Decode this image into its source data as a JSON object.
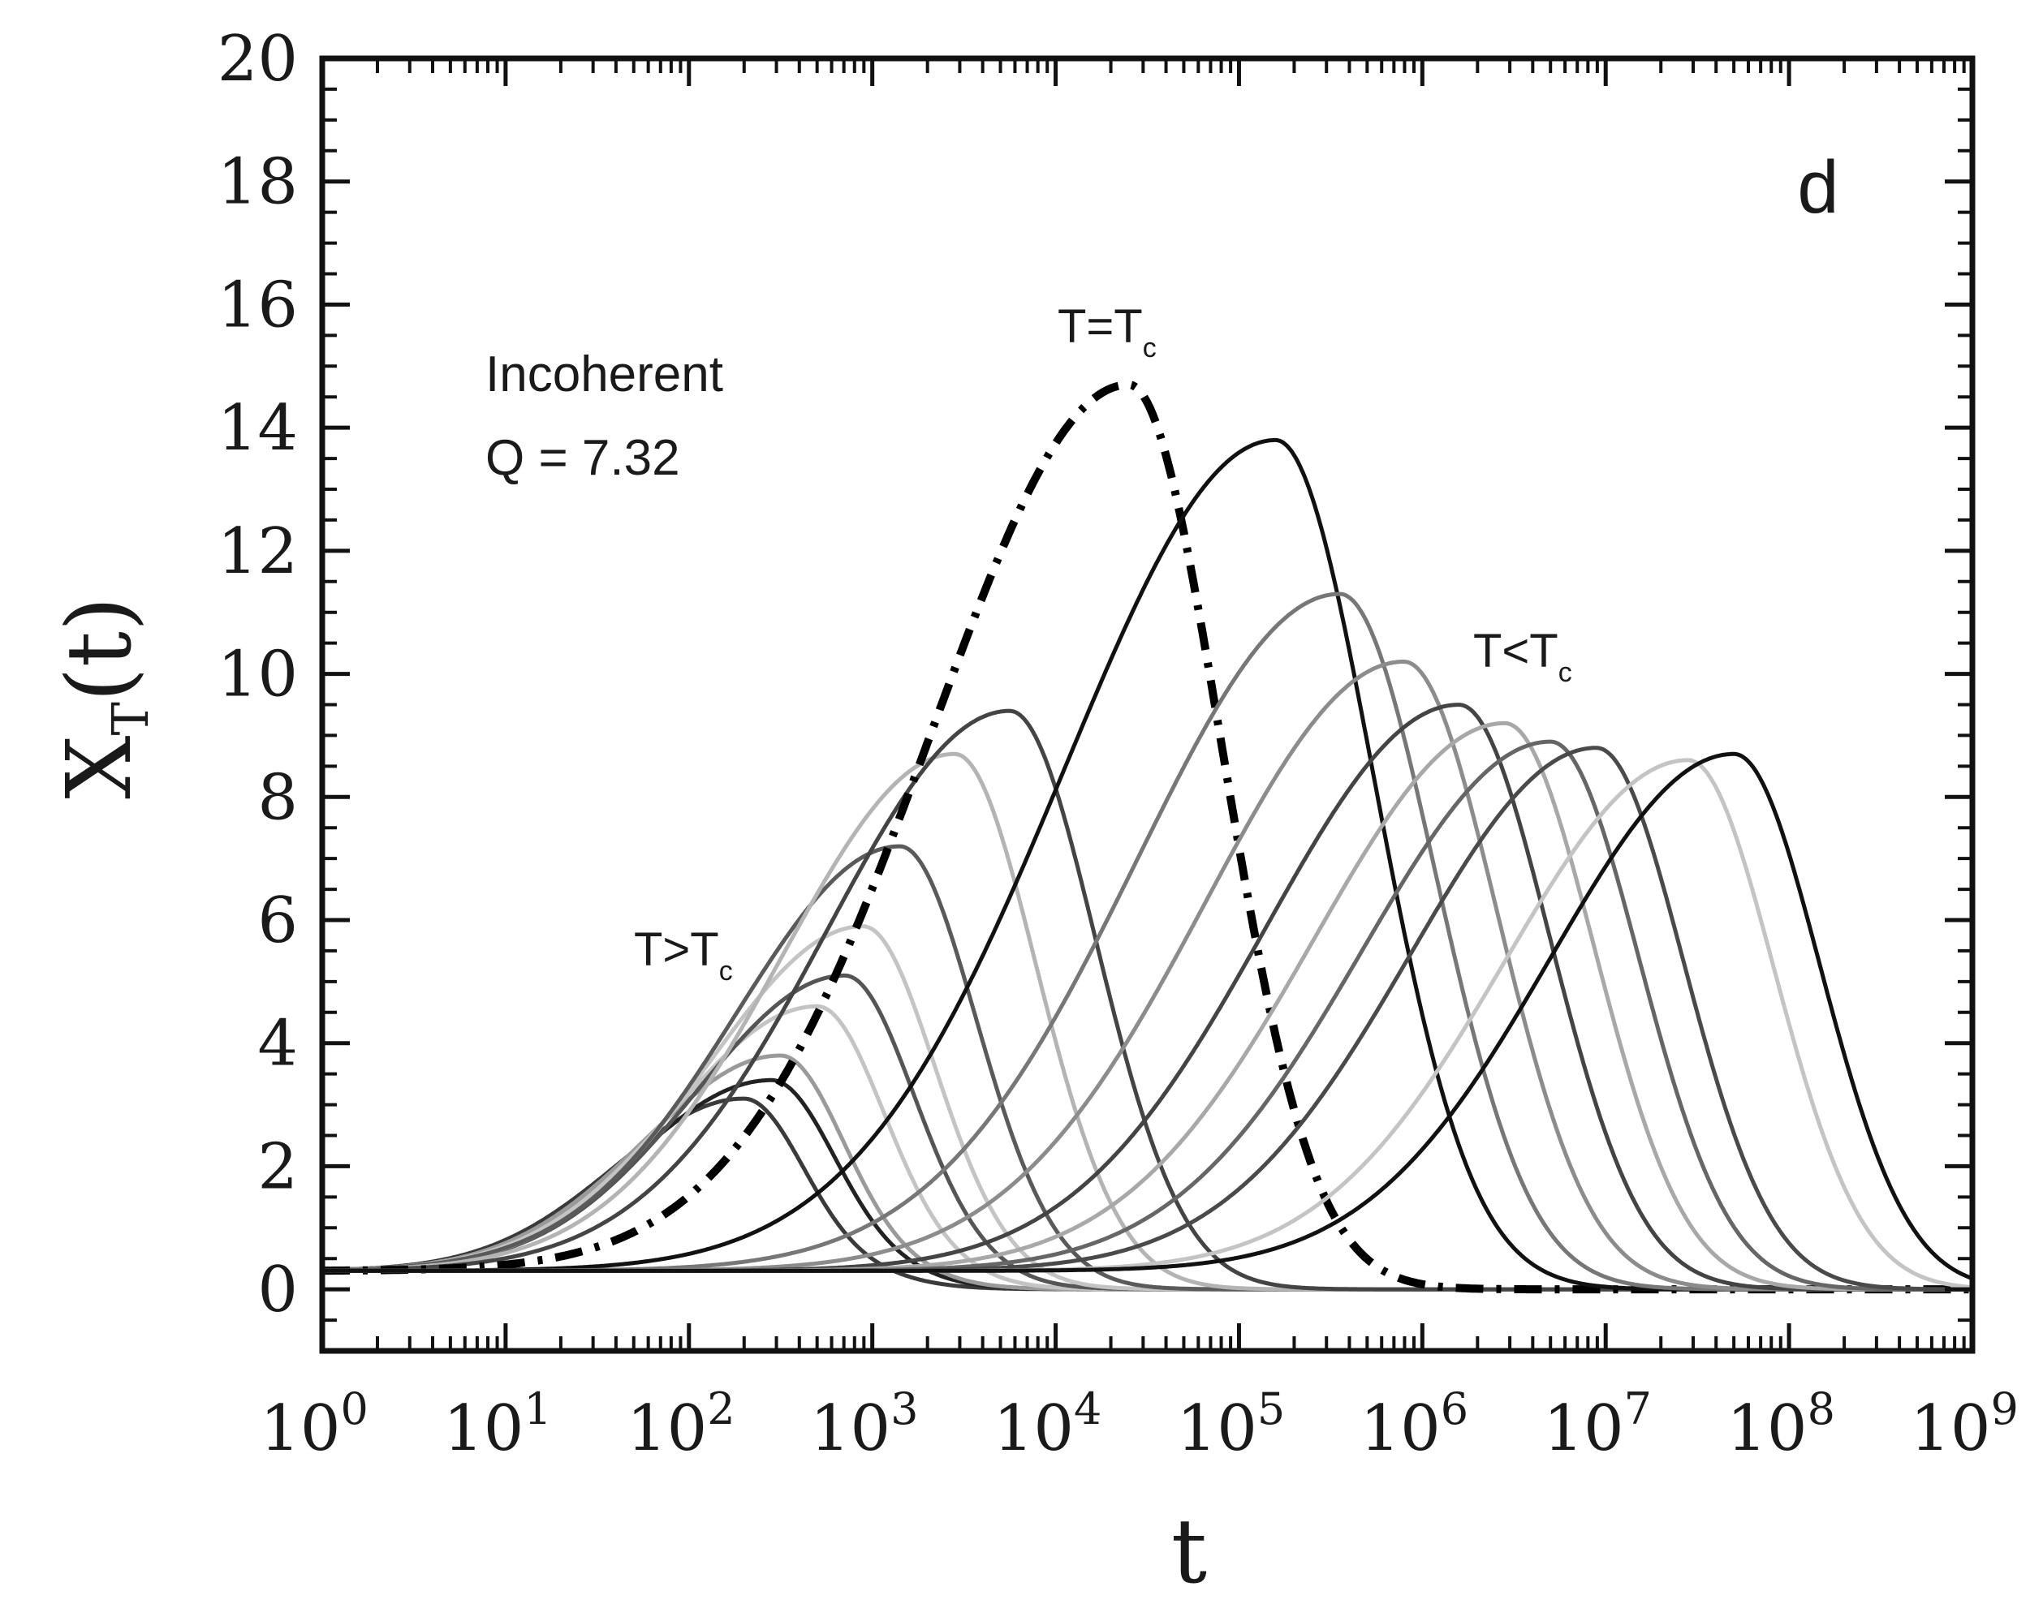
{
  "chart_data": {
    "type": "line",
    "panel_label": "d",
    "xlabel": "t",
    "ylabel": {
      "main": "X",
      "sub": "T",
      "rest": "(t)"
    },
    "x_scale": "log10",
    "xlim_exp": [
      0,
      9
    ],
    "ylim": [
      -1,
      20
    ],
    "x_ticks": [
      {
        "base": "10",
        "exp": "0"
      },
      {
        "base": "10",
        "exp": "1"
      },
      {
        "base": "10",
        "exp": "2"
      },
      {
        "base": "10",
        "exp": "3"
      },
      {
        "base": "10",
        "exp": "4"
      },
      {
        "base": "10",
        "exp": "5"
      },
      {
        "base": "10",
        "exp": "6"
      },
      {
        "base": "10",
        "exp": "7"
      },
      {
        "base": "10",
        "exp": "8"
      },
      {
        "base": "10",
        "exp": "9"
      }
    ],
    "y_ticks": [
      "0",
      "2",
      "4",
      "6",
      "8",
      "10",
      "12",
      "14",
      "16",
      "18",
      "20"
    ],
    "annotations": {
      "regime": "Incoherent",
      "q_value": "Q = 7.32",
      "t_equal": {
        "main": "T=T",
        "sub": "c"
      },
      "t_above": {
        "main": "T>T",
        "sub": "c"
      },
      "t_below": {
        "main": "T<T",
        "sub": "c"
      }
    },
    "baseline": 0.3,
    "series": [
      {
        "name": "T>Tc 1",
        "group": "T>Tc",
        "peak_log_t": 2.3,
        "peak": 3.1,
        "width": 0.52,
        "color": "#3a3a3a",
        "style": "solid"
      },
      {
        "name": "T>Tc 2",
        "group": "T>Tc",
        "peak_log_t": 2.45,
        "peak": 3.4,
        "width": 0.55,
        "color": "#222222",
        "style": "solid"
      },
      {
        "name": "T>Tc 3",
        "group": "T>Tc",
        "peak_log_t": 2.5,
        "peak": 3.8,
        "width": 0.55,
        "color": "#9a9a9a",
        "style": "solid"
      },
      {
        "name": "T>Tc 4",
        "group": "T>Tc",
        "peak_log_t": 2.7,
        "peak": 4.6,
        "width": 0.58,
        "color": "#c4c4c4",
        "style": "solid"
      },
      {
        "name": "T>Tc 5",
        "group": "T>Tc",
        "peak_log_t": 2.85,
        "peak": 5.1,
        "width": 0.6,
        "color": "#555555",
        "style": "solid"
      },
      {
        "name": "T>Tc 6",
        "group": "T>Tc",
        "peak_log_t": 2.95,
        "peak": 5.9,
        "width": 0.62,
        "color": "#c4c4c4",
        "style": "solid"
      },
      {
        "name": "T>Tc 7",
        "group": "T>Tc",
        "peak_log_t": 3.15,
        "peak": 7.2,
        "width": 0.66,
        "color": "#5a5a5a",
        "style": "solid"
      },
      {
        "name": "T>Tc 8",
        "group": "T>Tc",
        "peak_log_t": 3.45,
        "peak": 8.7,
        "width": 0.7,
        "color": "#b4b4b4",
        "style": "solid"
      },
      {
        "name": "T>Tc 9",
        "group": "T>Tc",
        "peak_log_t": 3.75,
        "peak": 9.4,
        "width": 0.74,
        "color": "#444444",
        "style": "solid"
      },
      {
        "name": "T=Tc",
        "group": "T=Tc",
        "peak_log_t": 4.4,
        "peak": 14.7,
        "width": 0.8,
        "color": "#000000",
        "style": "dashdot"
      },
      {
        "name": "T<Tc 1",
        "group": "T<Tc",
        "peak_log_t": 5.2,
        "peak": 13.8,
        "width": 0.85,
        "color": "#111111",
        "style": "solid"
      },
      {
        "name": "T<Tc 2",
        "group": "T<Tc",
        "peak_log_t": 5.55,
        "peak": 11.3,
        "width": 0.82,
        "color": "#777777",
        "style": "solid"
      },
      {
        "name": "T<Tc 3",
        "group": "T<Tc",
        "peak_log_t": 5.9,
        "peak": 10.2,
        "width": 0.8,
        "color": "#8c8c8c",
        "style": "solid"
      },
      {
        "name": "T<Tc 4",
        "group": "T<Tc",
        "peak_log_t": 6.2,
        "peak": 9.5,
        "width": 0.78,
        "color": "#444444",
        "style": "solid"
      },
      {
        "name": "T<Tc 5",
        "group": "T<Tc",
        "peak_log_t": 6.45,
        "peak": 9.2,
        "width": 0.77,
        "color": "#a8a8a8",
        "style": "solid"
      },
      {
        "name": "T<Tc 6",
        "group": "T<Tc",
        "peak_log_t": 6.7,
        "peak": 8.9,
        "width": 0.76,
        "color": "#666666",
        "style": "solid"
      },
      {
        "name": "T<Tc 7",
        "group": "T<Tc",
        "peak_log_t": 6.95,
        "peak": 8.8,
        "width": 0.75,
        "color": "#4a4a4a",
        "style": "solid"
      },
      {
        "name": "T<Tc 8",
        "group": "T<Tc",
        "peak_log_t": 7.45,
        "peak": 8.6,
        "width": 0.74,
        "color": "#c4c4c4",
        "style": "solid"
      },
      {
        "name": "T<Tc 9",
        "group": "T<Tc",
        "peak_log_t": 7.7,
        "peak": 8.7,
        "width": 0.74,
        "color": "#111111",
        "style": "solid"
      }
    ]
  }
}
